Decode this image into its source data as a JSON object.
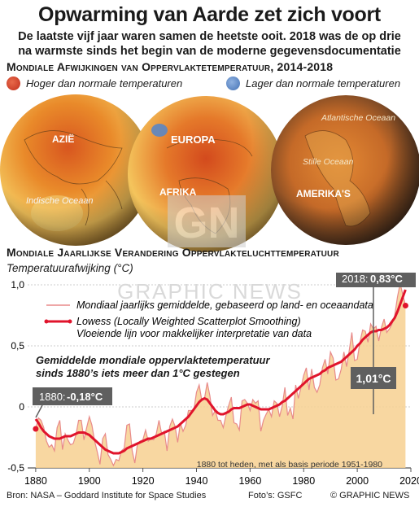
{
  "header": {
    "title": "Opwarming van Aarde zet zich voort",
    "subtitle": "De laatste vijf jaar waren samen de heetste ooit. 2018 was de op drie na warmste sinds het begin van de moderne gegevensdocumentatie"
  },
  "maps": {
    "section_title": "Mondiale Afwijkingen van Oppervlaktetemperatuur, 2014-2018",
    "legend_warm": "Hoger dan normale temperaturen",
    "legend_cold": "Lager dan normale temperaturen",
    "globe_labels": {
      "azie": "AZIË",
      "indische": "Indische Oceaan",
      "europa": "EUROPA",
      "afrika": "AFRIKA",
      "atlantische": "Atlantische Oceaan",
      "stille": "Stille Oceaan",
      "amerikas": "AMERIKA'S"
    },
    "colors": {
      "warm": "#d64a2a",
      "cold": "#5b86c4"
    }
  },
  "watermark": {
    "logo": "GN",
    "text": "GRAPHIC NEWS"
  },
  "chart_section": {
    "section_title": "Mondiale Jaarlijkse Verandering Oppervlakteluchttemperatuur",
    "ylabel": "Temperatuurafwijking (°C)",
    "legend_annual": "Mondiaal jaarlijks gemiddelde, gebaseerd op land- en oceaandata",
    "legend_lowess_1": "Lowess (Locally Weighted Scatterplot Smoothing)",
    "legend_lowess_2": "Vloeiende lijn voor makkelijker interpretatie van data",
    "annotation_1": "Gemiddelde mondiale oppervlaktetemperatuur",
    "annotation_2": "sinds 1880’s iets meer dan 1°C gestegen",
    "callout_1880_year": "1880:",
    "callout_1880_value": "-0,18°C",
    "callout_2018_year": "2018:",
    "callout_2018_value": "0,83°C",
    "callout_rise": "1,01°C",
    "baseline_note": "1880 tot heden, met als basis periode 1951-1980"
  },
  "footer": {
    "source": "Bron: NASA – Goddard Institute for Space Studies",
    "photos": "Foto’s: GSFC",
    "copyright": "© GRAPHIC NEWS"
  },
  "chart_data": {
    "type": "line",
    "xlim": [
      1877,
      2020
    ],
    "ylim": [
      -0.5,
      1.0
    ],
    "x_ticks": [
      1880,
      1900,
      1920,
      1940,
      1960,
      1980,
      2000,
      2020
    ],
    "x_tick_labels": [
      "1880",
      "1900",
      "1920",
      "1940",
      "1960",
      "1980",
      "2000",
      "2020"
    ],
    "y_ticks": [
      -0.5,
      0,
      0.5,
      1.0
    ],
    "y_tick_labels": [
      "-0,5",
      "0",
      "0,5",
      "1,0"
    ],
    "grid": true,
    "x": [
      1880,
      1881,
      1882,
      1883,
      1884,
      1885,
      1886,
      1887,
      1888,
      1889,
      1890,
      1891,
      1892,
      1893,
      1894,
      1895,
      1896,
      1897,
      1898,
      1899,
      1900,
      1901,
      1902,
      1903,
      1904,
      1905,
      1906,
      1907,
      1908,
      1909,
      1910,
      1911,
      1912,
      1913,
      1914,
      1915,
      1916,
      1917,
      1918,
      1919,
      1920,
      1921,
      1922,
      1923,
      1924,
      1925,
      1926,
      1927,
      1928,
      1929,
      1930,
      1931,
      1932,
      1933,
      1934,
      1935,
      1936,
      1937,
      1938,
      1939,
      1940,
      1941,
      1942,
      1943,
      1944,
      1945,
      1946,
      1947,
      1948,
      1949,
      1950,
      1951,
      1952,
      1953,
      1954,
      1955,
      1956,
      1957,
      1958,
      1959,
      1960,
      1961,
      1962,
      1963,
      1964,
      1965,
      1966,
      1967,
      1968,
      1969,
      1970,
      1971,
      1972,
      1973,
      1974,
      1975,
      1976,
      1977,
      1978,
      1979,
      1980,
      1981,
      1982,
      1983,
      1984,
      1985,
      1986,
      1987,
      1988,
      1989,
      1990,
      1991,
      1992,
      1993,
      1994,
      1995,
      1996,
      1997,
      1998,
      1999,
      2000,
      2001,
      2002,
      2003,
      2004,
      2005,
      2006,
      2007,
      2008,
      2009,
      2010,
      2011,
      2012,
      2013,
      2014,
      2015,
      2016,
      2017,
      2018
    ],
    "series": [
      {
        "name": "Mondiaal jaarlijks gemiddelde, gebaseerd op land- en oceaandata",
        "values": [
          -0.18,
          -0.09,
          -0.11,
          -0.17,
          -0.28,
          -0.33,
          -0.31,
          -0.36,
          -0.17,
          -0.11,
          -0.35,
          -0.22,
          -0.27,
          -0.31,
          -0.3,
          -0.23,
          -0.11,
          -0.11,
          -0.27,
          -0.17,
          -0.08,
          -0.15,
          -0.28,
          -0.37,
          -0.47,
          -0.26,
          -0.22,
          -0.39,
          -0.43,
          -0.48,
          -0.43,
          -0.44,
          -0.36,
          -0.34,
          -0.15,
          -0.14,
          -0.36,
          -0.46,
          -0.3,
          -0.28,
          -0.27,
          -0.19,
          -0.28,
          -0.26,
          -0.27,
          -0.22,
          -0.11,
          -0.22,
          -0.2,
          -0.36,
          -0.16,
          -0.1,
          -0.16,
          -0.29,
          -0.13,
          -0.2,
          -0.15,
          -0.03,
          -0.03,
          -0.03,
          0.12,
          0.18,
          0.05,
          0.07,
          0.2,
          0.09,
          -0.07,
          -0.03,
          -0.11,
          -0.11,
          -0.17,
          -0.07,
          0.01,
          0.08,
          -0.13,
          -0.14,
          -0.19,
          0.05,
          0.06,
          0.03,
          -0.03,
          0.06,
          0.03,
          0.05,
          -0.2,
          -0.11,
          -0.06,
          -0.02,
          -0.08,
          0.05,
          0.03,
          -0.08,
          0.01,
          0.16,
          -0.07,
          -0.01,
          -0.1,
          0.18,
          0.07,
          0.16,
          0.26,
          0.32,
          0.14,
          0.31,
          0.16,
          0.12,
          0.18,
          0.32,
          0.39,
          0.27,
          0.45,
          0.4,
          0.22,
          0.23,
          0.31,
          0.45,
          0.33,
          0.46,
          0.61,
          0.38,
          0.39,
          0.53,
          0.63,
          0.62,
          0.53,
          0.68,
          0.64,
          0.66,
          0.54,
          0.65,
          0.72,
          0.61,
          0.64,
          0.68,
          0.75,
          0.9,
          1.01,
          0.92,
          0.83
        ]
      },
      {
        "name": "Lowess (Locally Weighted Scatterplot Smoothing)",
        "values": [
          -0.1,
          -0.13,
          -0.17,
          -0.2,
          -0.22,
          -0.24,
          -0.25,
          -0.26,
          -0.26,
          -0.26,
          -0.25,
          -0.24,
          -0.24,
          -0.24,
          -0.23,
          -0.22,
          -0.21,
          -0.21,
          -0.21,
          -0.22,
          -0.23,
          -0.25,
          -0.27,
          -0.29,
          -0.31,
          -0.33,
          -0.35,
          -0.36,
          -0.37,
          -0.38,
          -0.38,
          -0.38,
          -0.37,
          -0.36,
          -0.34,
          -0.33,
          -0.32,
          -0.31,
          -0.3,
          -0.29,
          -0.28,
          -0.27,
          -0.26,
          -0.26,
          -0.25,
          -0.24,
          -0.23,
          -0.22,
          -0.21,
          -0.2,
          -0.19,
          -0.18,
          -0.17,
          -0.16,
          -0.14,
          -0.12,
          -0.1,
          -0.08,
          -0.05,
          -0.02,
          0.01,
          0.04,
          0.06,
          0.07,
          0.06,
          0.03,
          0.0,
          -0.03,
          -0.05,
          -0.06,
          -0.06,
          -0.05,
          -0.04,
          -0.02,
          -0.01,
          -0.01,
          -0.01,
          0.0,
          0.01,
          0.02,
          0.02,
          0.01,
          0.0,
          -0.01,
          -0.02,
          -0.02,
          -0.02,
          -0.02,
          -0.01,
          0.0,
          0.01,
          0.02,
          0.04,
          0.05,
          0.07,
          0.09,
          0.11,
          0.13,
          0.15,
          0.17,
          0.19,
          0.21,
          0.23,
          0.24,
          0.25,
          0.26,
          0.27,
          0.29,
          0.3,
          0.32,
          0.33,
          0.34,
          0.35,
          0.36,
          0.37,
          0.39,
          0.41,
          0.43,
          0.45,
          0.47,
          0.5,
          0.52,
          0.55,
          0.57,
          0.59,
          0.61,
          0.62,
          0.62,
          0.63,
          0.63,
          0.64,
          0.65,
          0.67,
          0.7,
          0.73,
          0.78,
          0.84,
          0.9,
          0.96
        ]
      }
    ]
  }
}
